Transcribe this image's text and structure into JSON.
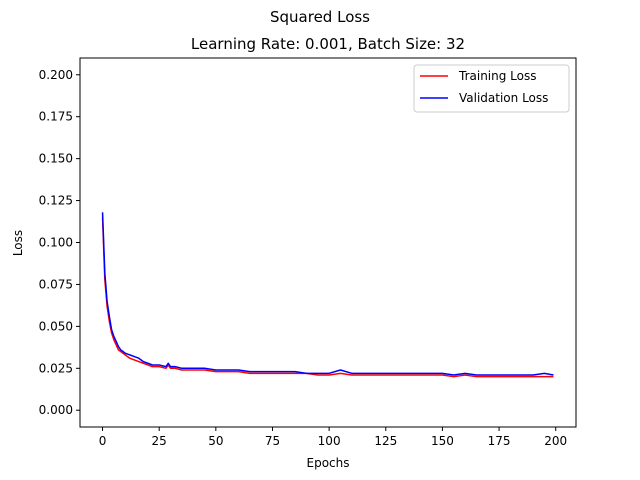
{
  "chart_data": {
    "type": "line",
    "suptitle": "Squared Loss",
    "title": "Learning Rate: 0.001, Batch Size: 32",
    "xlabel": "Epochs",
    "ylabel": "Loss",
    "xlim": [
      -9.95,
      208.95
    ],
    "ylim": [
      -0.01,
      0.21
    ],
    "xticks": [
      0,
      25,
      50,
      75,
      100,
      125,
      150,
      175,
      200
    ],
    "yticks": [
      0.0,
      0.025,
      0.05,
      0.075,
      0.1,
      0.125,
      0.15,
      0.175,
      0.2
    ],
    "xtick_labels": [
      "0",
      "25",
      "50",
      "75",
      "100",
      "125",
      "150",
      "175",
      "200"
    ],
    "ytick_labels": [
      "0.000",
      "0.025",
      "0.050",
      "0.075",
      "0.100",
      "0.125",
      "0.150",
      "0.175",
      "0.200"
    ],
    "grid": false,
    "legend_position": "top-right",
    "series": [
      {
        "name": "Training Loss",
        "color": "#ff0000",
        "x": [
          0,
          1,
          2,
          3,
          4,
          5,
          6,
          7,
          8,
          9,
          10,
          12,
          14,
          16,
          18,
          20,
          22,
          25,
          28,
          29,
          30,
          32,
          35,
          40,
          45,
          50,
          55,
          60,
          65,
          70,
          75,
          80,
          85,
          90,
          95,
          100,
          105,
          110,
          115,
          120,
          125,
          130,
          135,
          140,
          145,
          150,
          155,
          160,
          165,
          170,
          175,
          180,
          185,
          190,
          195,
          199
        ],
        "y": [
          0.115,
          0.078,
          0.062,
          0.053,
          0.046,
          0.042,
          0.039,
          0.036,
          0.035,
          0.034,
          0.033,
          0.031,
          0.03,
          0.029,
          0.028,
          0.027,
          0.026,
          0.026,
          0.025,
          0.027,
          0.025,
          0.025,
          0.024,
          0.024,
          0.024,
          0.023,
          0.023,
          0.023,
          0.022,
          0.022,
          0.022,
          0.022,
          0.022,
          0.022,
          0.021,
          0.021,
          0.022,
          0.021,
          0.021,
          0.021,
          0.021,
          0.021,
          0.021,
          0.021,
          0.021,
          0.021,
          0.02,
          0.021,
          0.02,
          0.02,
          0.02,
          0.02,
          0.02,
          0.02,
          0.02,
          0.02
        ]
      },
      {
        "name": "Validation Loss",
        "color": "#0000ff",
        "x": [
          0,
          1,
          2,
          3,
          4,
          5,
          6,
          7,
          8,
          9,
          10,
          12,
          14,
          16,
          18,
          20,
          22,
          25,
          28,
          29,
          30,
          32,
          35,
          40,
          45,
          50,
          55,
          60,
          65,
          70,
          75,
          80,
          85,
          90,
          95,
          100,
          105,
          110,
          115,
          120,
          125,
          130,
          135,
          140,
          145,
          150,
          155,
          160,
          165,
          170,
          175,
          180,
          185,
          190,
          195,
          199
        ],
        "y": [
          0.118,
          0.082,
          0.065,
          0.056,
          0.048,
          0.044,
          0.041,
          0.038,
          0.036,
          0.035,
          0.034,
          0.033,
          0.032,
          0.031,
          0.029,
          0.028,
          0.027,
          0.027,
          0.026,
          0.028,
          0.026,
          0.026,
          0.025,
          0.025,
          0.025,
          0.024,
          0.024,
          0.024,
          0.023,
          0.023,
          0.023,
          0.023,
          0.023,
          0.022,
          0.022,
          0.022,
          0.024,
          0.022,
          0.022,
          0.022,
          0.022,
          0.022,
          0.022,
          0.022,
          0.022,
          0.022,
          0.021,
          0.022,
          0.021,
          0.021,
          0.021,
          0.021,
          0.021,
          0.021,
          0.022,
          0.021
        ]
      }
    ]
  }
}
